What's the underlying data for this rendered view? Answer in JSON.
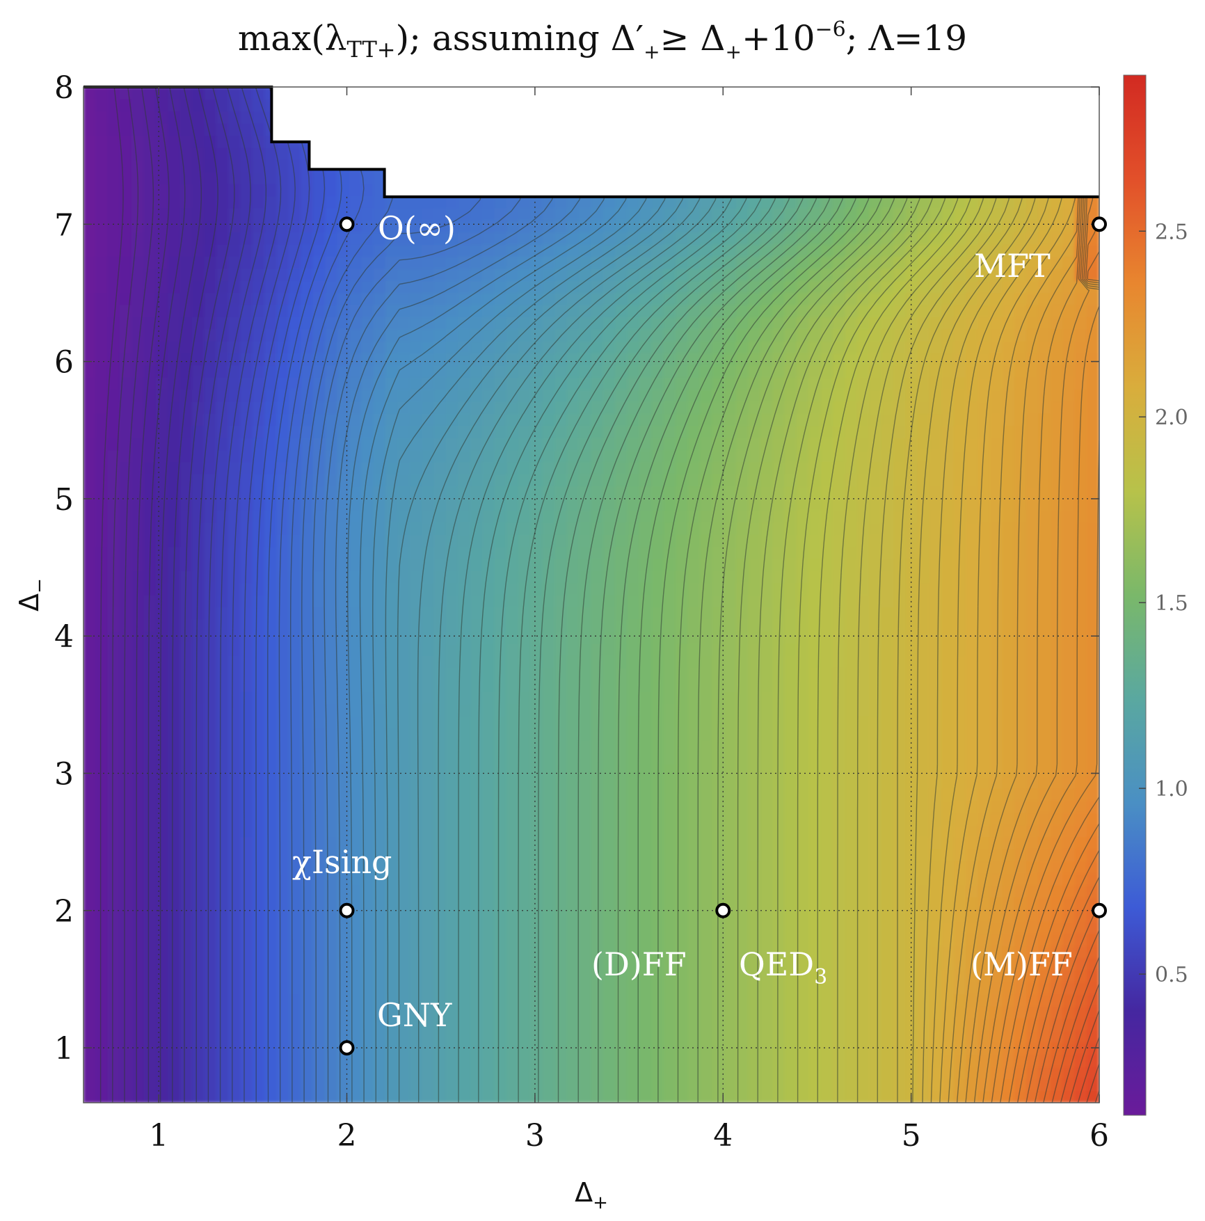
{
  "chart_data": {
    "type": "heatmap",
    "title": {
      "pre": "max(",
      "lambda": "λ",
      "lambda_sub": "TT+",
      "mid": "); assuming Δ′",
      "mid_sub": "+",
      "mid2": "≥ Δ",
      "mid2_sub": "+",
      "mid3": "+10",
      "mid3_sup": "−6",
      "post": "; Λ=19"
    },
    "xlabel": {
      "main": "Δ",
      "sub": "+"
    },
    "ylabel": {
      "main": "Δ",
      "sub": "−"
    },
    "xlim": [
      0.6,
      6
    ],
    "ylim": [
      0.6,
      8
    ],
    "xticks": [
      1,
      2,
      3,
      4,
      5,
      6
    ],
    "yticks": [
      1,
      2,
      3,
      4,
      5,
      6,
      7,
      8
    ],
    "x_grid": [
      1,
      2,
      3,
      4,
      5
    ],
    "y_grid": [
      1,
      2,
      3,
      4,
      5,
      6,
      7
    ],
    "colorbar": {
      "range": [
        0.12,
        2.92
      ],
      "ticks": [
        "0.5",
        "1.0",
        "1.5",
        "2.0",
        "2.5"
      ],
      "tick_values": [
        0.5,
        1.0,
        1.5,
        2.0,
        2.5
      ],
      "colors": [
        "#6a1b9a",
        "#4527a0",
        "#3d5bd6",
        "#4a8fc4",
        "#5aa8a0",
        "#7ab86a",
        "#b7c24a",
        "#d9ad3c",
        "#e8862f",
        "#e2502a",
        "#d22a22"
      ]
    },
    "boundary": [
      [
        0.6,
        8.0
      ],
      [
        1.6,
        8.0
      ],
      [
        1.6,
        7.6
      ],
      [
        1.8,
        7.6
      ],
      [
        1.8,
        7.4
      ],
      [
        2.2,
        7.4
      ],
      [
        2.2,
        7.2
      ],
      [
        6.0,
        7.2
      ]
    ],
    "points": [
      {
        "label": "O(∞)",
        "x": 2,
        "y": 7
      },
      {
        "label": "χIsing",
        "x": 2,
        "y": 2
      },
      {
        "label": "GNY",
        "x": 2,
        "y": 1
      },
      {
        "label": "QED₃",
        "x": 4,
        "y": 2
      },
      {
        "label": "MFT",
        "x": 6,
        "y": 7
      },
      {
        "label": "(M)FF",
        "x": 6,
        "y": 2
      }
    ],
    "annotations": {
      "oinf": "O(∞)",
      "mft": "MFT",
      "chiising": "χIsing",
      "gny": "GNY",
      "dff": "(D)FF",
      "qed": "QED",
      "qed_sub": "3",
      "mff": "(M)FF"
    }
  }
}
